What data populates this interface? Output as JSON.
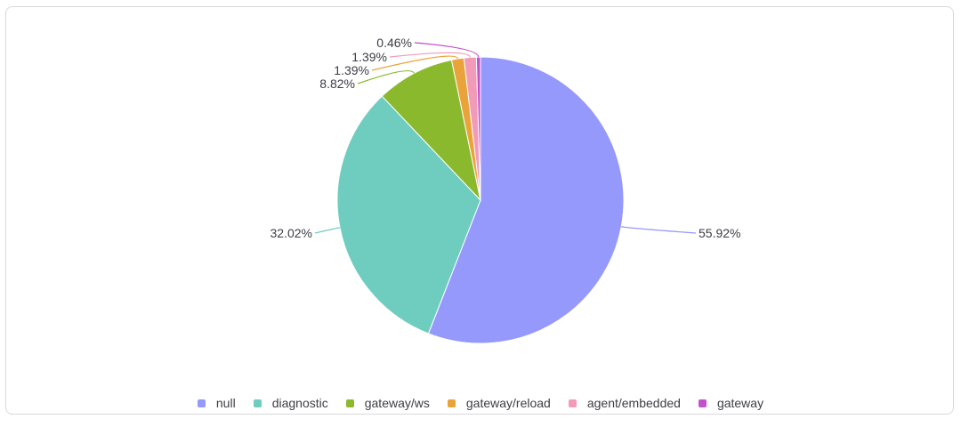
{
  "chart_data": {
    "type": "pie",
    "title": "",
    "legend_position": "bottom",
    "slices": [
      {
        "label": "null",
        "value": 55.92,
        "display": "55.92%",
        "color": "#9599fb"
      },
      {
        "label": "diagnostic",
        "value": 32.02,
        "display": "32.02%",
        "color": "#6fcdc0"
      },
      {
        "label": "gateway/ws",
        "value": 8.82,
        "display": "8.82%",
        "color": "#8bb92e"
      },
      {
        "label": "gateway/reload",
        "value": 1.39,
        "display": "1.39%",
        "color": "#e9a33a"
      },
      {
        "label": "agent/embedded",
        "value": 1.39,
        "display": "1.39%",
        "color": "#f19bb9"
      },
      {
        "label": "gateway",
        "value": 0.46,
        "display": "0.46%",
        "color": "#c451cc"
      }
    ]
  }
}
